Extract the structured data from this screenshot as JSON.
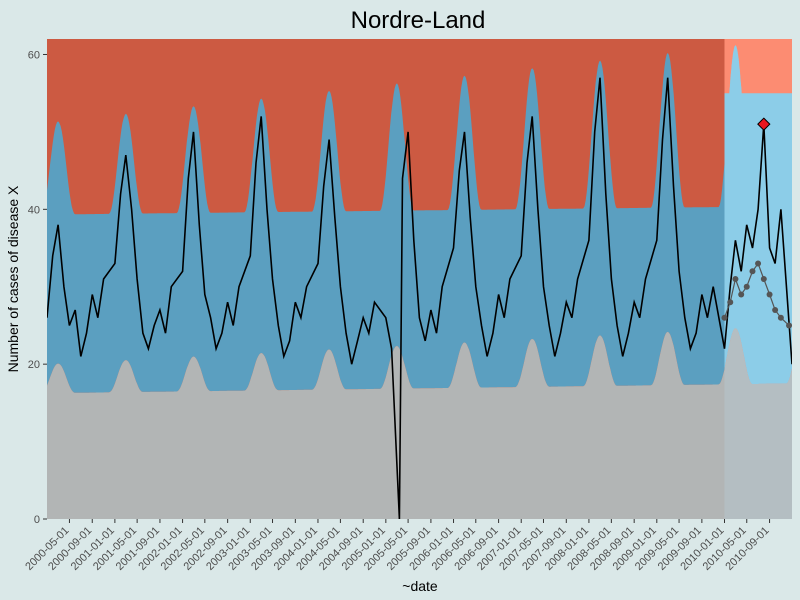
{
  "chart_data": {
    "type": "area",
    "title": "Nordre-Land",
    "xlabel": "~date",
    "ylabel": "Number of cases of disease X",
    "xlim": [
      "2000-01-01",
      "2010-12-31"
    ],
    "ylim": [
      0,
      62
    ],
    "y_ticks": [
      0,
      20,
      40,
      60
    ],
    "x_ticks": [
      "2000-05-01",
      "2000-09-01",
      "2001-01-01",
      "2001-05-01",
      "2001-09-01",
      "2002-01-01",
      "2002-05-01",
      "2002-09-01",
      "2003-01-01",
      "2003-05-01",
      "2003-09-01",
      "2004-01-01",
      "2004-05-01",
      "2004-09-01",
      "2005-01-01",
      "2005-05-01",
      "2005-09-01",
      "2006-01-01",
      "2006-05-01",
      "2006-09-01",
      "2007-01-01",
      "2007-05-01",
      "2007-09-01",
      "2008-01-01",
      "2008-05-01",
      "2008-09-01",
      "2009-01-01",
      "2009-05-01",
      "2009-09-01",
      "2010-01-01",
      "2010-05-01",
      "2010-09-01"
    ],
    "grid": false,
    "legend": "none",
    "baseline_end": "2010-01-01",
    "bands": {
      "lower_color": "#b2b5b5",
      "mid_color": "#5b9fc0",
      "upper_color": "#cc5a42",
      "highlight_lower_color": "#b4bec2",
      "highlight_mid_color": "#8ccde8",
      "highlight_upper_color": "#fc8c72",
      "highlight_start_color": "#aeb1b1"
    },
    "seasonal_model": {
      "peak_month": "March",
      "lower_threshold_range": [
        15,
        25
      ],
      "upper_threshold_range": [
        38,
        62
      ],
      "typical_cases_range": [
        15,
        50
      ]
    },
    "notable_points": {
      "outbreak_signal": {
        "date": "2010-08-01",
        "value": 51,
        "color": "#e8171f"
      },
      "minimum": {
        "date": "2005-03-15",
        "value": 0
      }
    },
    "series": [
      {
        "kind": "observed",
        "color": "#000000",
        "values": [
          {
            "x": "2000-01-01",
            "y": 26
          },
          {
            "x": "2000-02-01",
            "y": 34
          },
          {
            "x": "2000-03-01",
            "y": 38
          },
          {
            "x": "2000-04-01",
            "y": 30
          },
          {
            "x": "2000-05-01",
            "y": 25
          },
          {
            "x": "2000-06-01",
            "y": 27
          },
          {
            "x": "2000-07-01",
            "y": 21
          },
          {
            "x": "2000-08-01",
            "y": 24
          },
          {
            "x": "2000-09-01",
            "y": 29
          },
          {
            "x": "2000-10-01",
            "y": 26
          },
          {
            "x": "2000-11-01",
            "y": 31
          },
          {
            "x": "2001-01-01",
            "y": 33
          },
          {
            "x": "2001-02-01",
            "y": 42
          },
          {
            "x": "2001-03-01",
            "y": 47
          },
          {
            "x": "2001-04-01",
            "y": 40
          },
          {
            "x": "2001-05-01",
            "y": 31
          },
          {
            "x": "2001-06-01",
            "y": 24
          },
          {
            "x": "2001-07-01",
            "y": 22
          },
          {
            "x": "2001-08-01",
            "y": 25
          },
          {
            "x": "2001-09-01",
            "y": 27
          },
          {
            "x": "2001-10-01",
            "y": 24
          },
          {
            "x": "2001-11-01",
            "y": 30
          },
          {
            "x": "2002-01-01",
            "y": 32
          },
          {
            "x": "2002-02-01",
            "y": 44
          },
          {
            "x": "2002-03-01",
            "y": 50
          },
          {
            "x": "2002-04-01",
            "y": 38
          },
          {
            "x": "2002-05-01",
            "y": 29
          },
          {
            "x": "2002-06-01",
            "y": 26
          },
          {
            "x": "2002-07-01",
            "y": 22
          },
          {
            "x": "2002-08-01",
            "y": 24
          },
          {
            "x": "2002-09-01",
            "y": 28
          },
          {
            "x": "2002-10-01",
            "y": 25
          },
          {
            "x": "2002-11-01",
            "y": 30
          },
          {
            "x": "2003-01-01",
            "y": 34
          },
          {
            "x": "2003-02-01",
            "y": 46
          },
          {
            "x": "2003-03-01",
            "y": 52
          },
          {
            "x": "2003-04-01",
            "y": 40
          },
          {
            "x": "2003-05-01",
            "y": 31
          },
          {
            "x": "2003-06-01",
            "y": 25
          },
          {
            "x": "2003-07-01",
            "y": 21
          },
          {
            "x": "2003-08-01",
            "y": 23
          },
          {
            "x": "2003-09-01",
            "y": 28
          },
          {
            "x": "2003-10-01",
            "y": 26
          },
          {
            "x": "2003-11-01",
            "y": 30
          },
          {
            "x": "2004-01-01",
            "y": 33
          },
          {
            "x": "2004-02-01",
            "y": 43
          },
          {
            "x": "2004-03-01",
            "y": 49
          },
          {
            "x": "2004-04-01",
            "y": 39
          },
          {
            "x": "2004-05-01",
            "y": 30
          },
          {
            "x": "2004-06-01",
            "y": 24
          },
          {
            "x": "2004-07-01",
            "y": 20
          },
          {
            "x": "2004-08-01",
            "y": 23
          },
          {
            "x": "2004-09-01",
            "y": 26
          },
          {
            "x": "2004-10-01",
            "y": 24
          },
          {
            "x": "2004-11-01",
            "y": 28
          },
          {
            "x": "2005-01-01",
            "y": 26
          },
          {
            "x": "2005-02-01",
            "y": 22
          },
          {
            "x": "2005-03-15",
            "y": 0
          },
          {
            "x": "2005-04-01",
            "y": 44
          },
          {
            "x": "2005-05-01",
            "y": 50
          },
          {
            "x": "2005-06-01",
            "y": 36
          },
          {
            "x": "2005-07-01",
            "y": 26
          },
          {
            "x": "2005-08-01",
            "y": 23
          },
          {
            "x": "2005-09-01",
            "y": 27
          },
          {
            "x": "2005-10-01",
            "y": 24
          },
          {
            "x": "2005-11-01",
            "y": 30
          },
          {
            "x": "2006-01-01",
            "y": 35
          },
          {
            "x": "2006-02-01",
            "y": 45
          },
          {
            "x": "2006-03-01",
            "y": 50
          },
          {
            "x": "2006-04-01",
            "y": 39
          },
          {
            "x": "2006-05-01",
            "y": 30
          },
          {
            "x": "2006-06-01",
            "y": 25
          },
          {
            "x": "2006-07-01",
            "y": 21
          },
          {
            "x": "2006-08-01",
            "y": 24
          },
          {
            "x": "2006-09-01",
            "y": 29
          },
          {
            "x": "2006-10-01",
            "y": 26
          },
          {
            "x": "2006-11-01",
            "y": 31
          },
          {
            "x": "2007-01-01",
            "y": 34
          },
          {
            "x": "2007-02-01",
            "y": 46
          },
          {
            "x": "2007-03-01",
            "y": 52
          },
          {
            "x": "2007-04-01",
            "y": 40
          },
          {
            "x": "2007-05-01",
            "y": 30
          },
          {
            "x": "2007-06-01",
            "y": 25
          },
          {
            "x": "2007-07-01",
            "y": 21
          },
          {
            "x": "2007-08-01",
            "y": 24
          },
          {
            "x": "2007-09-01",
            "y": 28
          },
          {
            "x": "2007-10-01",
            "y": 26
          },
          {
            "x": "2007-11-01",
            "y": 31
          },
          {
            "x": "2008-01-01",
            "y": 36
          },
          {
            "x": "2008-02-01",
            "y": 50
          },
          {
            "x": "2008-03-01",
            "y": 57
          },
          {
            "x": "2008-04-01",
            "y": 42
          },
          {
            "x": "2008-05-01",
            "y": 31
          },
          {
            "x": "2008-06-01",
            "y": 25
          },
          {
            "x": "2008-07-01",
            "y": 21
          },
          {
            "x": "2008-08-01",
            "y": 24
          },
          {
            "x": "2008-09-01",
            "y": 28
          },
          {
            "x": "2008-10-01",
            "y": 26
          },
          {
            "x": "2008-11-01",
            "y": 31
          },
          {
            "x": "2009-01-01",
            "y": 36
          },
          {
            "x": "2009-02-01",
            "y": 49
          },
          {
            "x": "2009-03-01",
            "y": 57
          },
          {
            "x": "2009-04-01",
            "y": 43
          },
          {
            "x": "2009-05-01",
            "y": 32
          },
          {
            "x": "2009-06-01",
            "y": 26
          },
          {
            "x": "2009-07-01",
            "y": 22
          },
          {
            "x": "2009-08-01",
            "y": 24
          },
          {
            "x": "2009-09-01",
            "y": 29
          },
          {
            "x": "2009-10-01",
            "y": 26
          },
          {
            "x": "2009-11-01",
            "y": 30
          },
          {
            "x": "2010-01-01",
            "y": 22
          },
          {
            "x": "2010-02-01",
            "y": 30
          },
          {
            "x": "2010-03-01",
            "y": 36
          },
          {
            "x": "2010-04-01",
            "y": 32
          },
          {
            "x": "2010-05-01",
            "y": 38
          },
          {
            "x": "2010-06-01",
            "y": 35
          },
          {
            "x": "2010-07-01",
            "y": 40
          },
          {
            "x": "2010-08-01",
            "y": 51
          },
          {
            "x": "2010-09-01",
            "y": 35
          },
          {
            "x": "2010-10-01",
            "y": 33
          },
          {
            "x": "2010-11-01",
            "y": 40
          },
          {
            "x": "2010-12-31",
            "y": 20
          }
        ]
      },
      {
        "kind": "expected",
        "color": "#555555",
        "values": [
          {
            "x": "2010-01-01",
            "y": 26
          },
          {
            "x": "2010-02-01",
            "y": 28
          },
          {
            "x": "2010-03-01",
            "y": 31
          },
          {
            "x": "2010-04-01",
            "y": 29
          },
          {
            "x": "2010-05-01",
            "y": 30
          },
          {
            "x": "2010-06-01",
            "y": 32
          },
          {
            "x": "2010-07-01",
            "y": 33
          },
          {
            "x": "2010-08-01",
            "y": 31
          },
          {
            "x": "2010-09-01",
            "y": 29
          },
          {
            "x": "2010-10-01",
            "y": 27
          },
          {
            "x": "2010-11-01",
            "y": 26
          },
          {
            "x": "2010-12-15",
            "y": 25
          }
        ]
      }
    ]
  }
}
